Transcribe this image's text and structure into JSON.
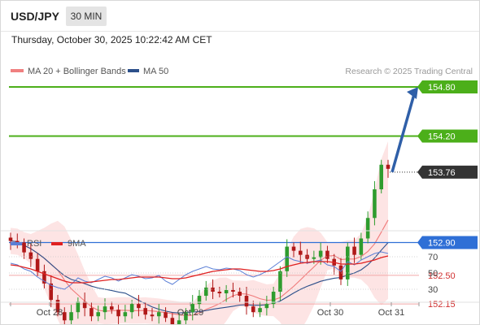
{
  "header": {
    "symbol": "USD/JPY",
    "timeframe": "30 MIN",
    "datetime": "Thursday, October 30, 2025 10:22:42 AM CET"
  },
  "legend": {
    "items": [
      {
        "label": "MA 20 + Bollinger Bands",
        "color": "#f08080"
      },
      {
        "label": "MA 50",
        "color": "#2c4f8a"
      }
    ],
    "copyright": "Research © 2025 Trading Central"
  },
  "rsi_legend": {
    "items": [
      {
        "label": "RSI",
        "color": "#5b7fd6"
      },
      {
        "label": "9MA",
        "color": "#e02020"
      }
    ]
  },
  "colors": {
    "resistance": "#4caf1a",
    "support_line": "#f2a8a8",
    "support_text": "#d03030",
    "pivot": "#2f6fd6",
    "current_tag": "#333333",
    "arrow": "#2f5fa8",
    "candle_up": "#2e9c2e",
    "candle_down": "#b01818",
    "band_fill": "#fde4e4",
    "ma20": "#f07a7a",
    "ma50": "#2c4f8a",
    "rsi": "#5b7fd6",
    "rsi_ma": "#e02020"
  },
  "chart_data": [
    {
      "type": "candlestick",
      "title": "USD/JPY 30 MIN",
      "x_ticks": [
        "Oct 28",
        "Oct 29",
        "Oct 30",
        "Oct 31"
      ],
      "ylim": [
        151.8,
        155.0
      ],
      "series": [
        {
          "name": "MA 20 + Bollinger Bands",
          "indicator": "ma20_bb"
        },
        {
          "name": "MA 50",
          "indicator": "ma50"
        }
      ],
      "horizontal_levels": [
        {
          "value": 154.8,
          "label": "154.80",
          "role": "resistance"
        },
        {
          "value": 154.2,
          "label": "154.20",
          "role": "resistance"
        },
        {
          "value": 153.76,
          "label": "153.76",
          "role": "current"
        },
        {
          "value": 152.9,
          "label": "152.90",
          "role": "pivot"
        },
        {
          "value": 152.5,
          "label": "152.50",
          "role": "support"
        },
        {
          "value": 152.15,
          "label": "152.15",
          "role": "support"
        }
      ],
      "arrow": {
        "from": 153.76,
        "to": 154.8,
        "direction": "up"
      },
      "close_path": [
        152.92,
        152.9,
        152.78,
        152.7,
        152.55,
        152.4,
        152.2,
        152.05,
        151.95,
        152.05,
        152.18,
        152.1,
        152.0,
        152.05,
        152.12,
        152.08,
        152.0,
        152.05,
        152.15,
        152.1,
        152.02,
        152.0,
        152.05,
        151.98,
        151.9,
        151.95,
        152.05,
        152.15,
        152.25,
        152.35,
        152.3,
        152.28,
        152.32,
        152.3,
        152.25,
        152.12,
        152.05,
        152.1,
        152.15,
        152.3,
        152.55,
        152.85,
        152.8,
        152.75,
        152.7,
        152.72,
        152.8,
        152.7,
        152.62,
        152.45,
        152.85,
        152.75,
        152.95,
        153.2,
        153.55,
        153.85,
        153.8
      ]
    },
    {
      "type": "line",
      "title": "RSI",
      "x_ticks": [
        "Oct 28",
        "Oct 29",
        "Oct 30",
        "Oct 31"
      ],
      "y_ticks": [
        70,
        50,
        30
      ],
      "ylim": [
        20,
        80
      ],
      "series": [
        {
          "name": "RSI",
          "values": [
            62,
            60,
            55,
            52,
            45,
            40,
            35,
            32,
            30,
            36,
            44,
            40,
            38,
            42,
            46,
            44,
            40,
            44,
            48,
            46,
            43,
            44,
            47,
            40,
            36,
            42,
            48,
            52,
            55,
            58,
            55,
            54,
            56,
            55,
            53,
            48,
            45,
            48,
            52,
            58,
            64,
            70,
            66,
            64,
            62,
            64,
            66,
            60,
            58,
            52,
            64,
            60,
            66,
            70,
            74,
            76,
            74
          ]
        },
        {
          "name": "9MA",
          "values": [
            60,
            59,
            57,
            55,
            52,
            49,
            46,
            43,
            40,
            38,
            38,
            38,
            39,
            40,
            41,
            42,
            42,
            43,
            44,
            45,
            45,
            45,
            45,
            44,
            43,
            43,
            44,
            46,
            48,
            50,
            52,
            53,
            54,
            55,
            55,
            54,
            53,
            52,
            52,
            53,
            55,
            58,
            60,
            62,
            63,
            64,
            64,
            64,
            63,
            61,
            61,
            61,
            62,
            64,
            66,
            69,
            71
          ]
        }
      ]
    }
  ]
}
